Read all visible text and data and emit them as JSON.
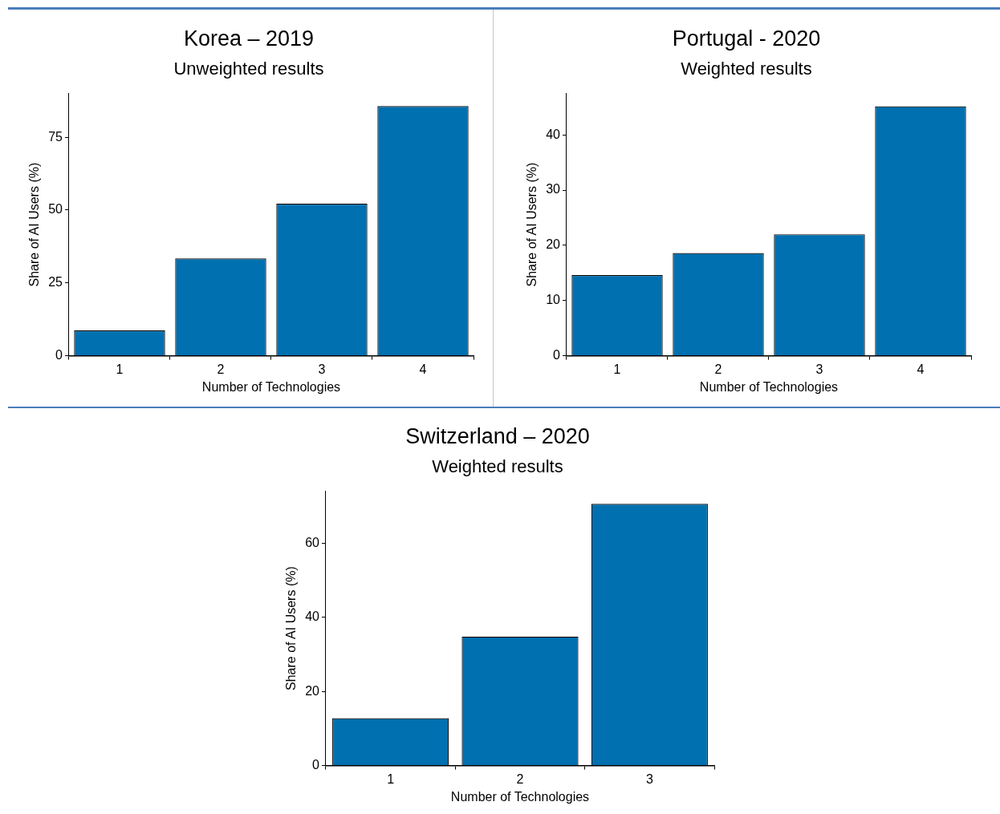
{
  "chart_data": [
    {
      "type": "bar",
      "title": "Korea – 2019",
      "subtitle": "Unweighted results",
      "xlabel": "Number of Technologies",
      "ylabel": "Share of AI Users (%)",
      "categories": [
        "1",
        "2",
        "3",
        "4"
      ],
      "values": [
        8.7,
        33.4,
        52.2,
        85.7
      ],
      "color": "#0070b0",
      "ylim": [
        0,
        90
      ],
      "yticks": [
        0,
        25,
        50,
        75
      ]
    },
    {
      "type": "bar",
      "title": "Portugal - 2020",
      "subtitle": "Weighted results",
      "xlabel": "Number of Technologies",
      "ylabel": "Share of AI Users (%)",
      "categories": [
        "1",
        "2",
        "3",
        "4"
      ],
      "values": [
        14.6,
        18.6,
        22.0,
        45.2
      ],
      "color": "#0070b0",
      "ylim": [
        0,
        47.5
      ],
      "yticks": [
        0,
        10,
        20,
        30,
        40
      ]
    },
    {
      "type": "bar",
      "title": "Switzerland – 2020",
      "subtitle": "Weighted results",
      "xlabel": "Number of Technologies",
      "ylabel": "Share of AI Users (%)",
      "categories": [
        "1",
        "2",
        "3"
      ],
      "values": [
        12.8,
        34.8,
        70.6
      ],
      "color": "#0070b0",
      "ylim": [
        0,
        74
      ],
      "yticks": [
        0,
        20,
        40,
        60
      ]
    }
  ]
}
